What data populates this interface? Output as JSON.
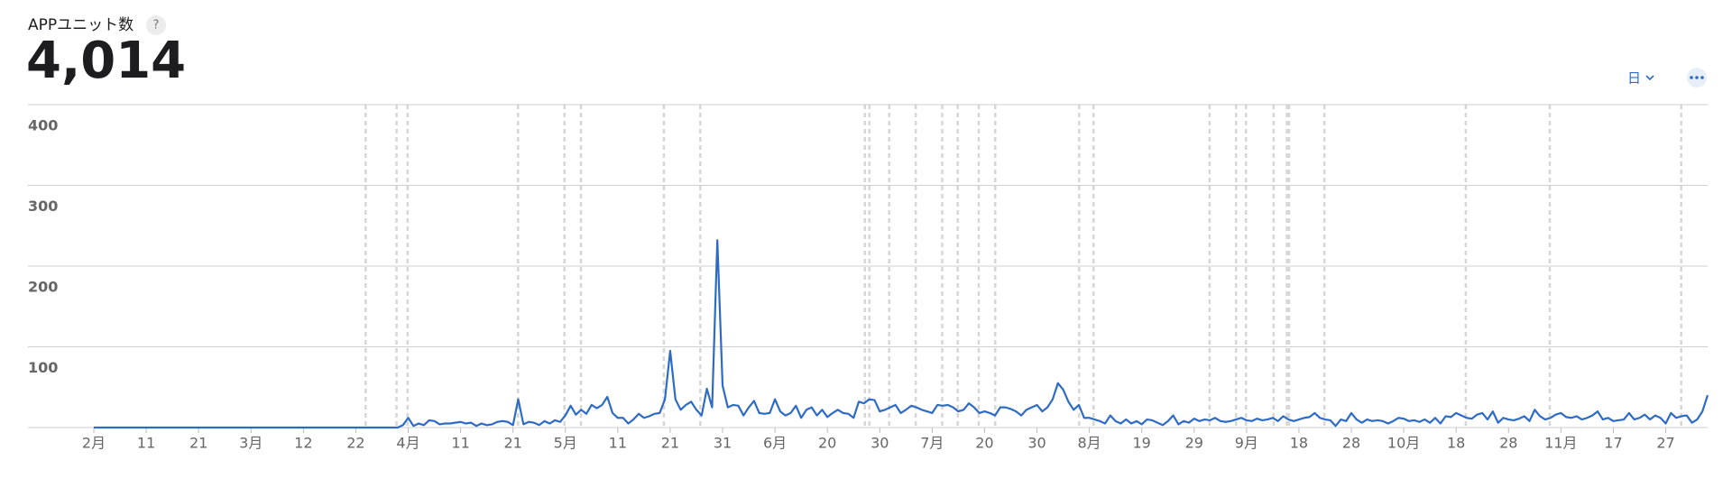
{
  "header": {
    "title": "APPユニット数",
    "help": "?",
    "total": "4,014",
    "period_menu": "日"
  },
  "chart_data": {
    "type": "line",
    "color": "#2e6bc6",
    "grid": true,
    "ylim": [
      0,
      400
    ],
    "yticks": [
      100,
      200,
      300,
      400
    ],
    "categories": [
      "2月",
      null,
      null,
      null,
      null,
      null,
      null,
      null,
      null,
      null,
      "11",
      null,
      null,
      null,
      null,
      null,
      null,
      null,
      null,
      null,
      "21",
      null,
      null,
      null,
      null,
      null,
      null,
      null,
      null,
      null,
      "3月",
      null,
      null,
      null,
      null,
      null,
      null,
      null,
      null,
      null,
      "12",
      null,
      null,
      null,
      null,
      null,
      null,
      null,
      null,
      null,
      "22",
      null,
      null,
      null,
      null,
      null,
      null,
      null,
      null,
      null,
      "4月",
      null,
      null,
      null,
      null,
      null,
      null,
      null,
      null,
      null,
      "11",
      null,
      null,
      null,
      null,
      null,
      null,
      null,
      null,
      null,
      "21",
      null,
      null,
      null,
      null,
      null,
      null,
      null,
      null,
      null,
      "5月",
      null,
      null,
      null,
      null,
      null,
      null,
      null,
      null,
      null,
      "11",
      null,
      null,
      null,
      null,
      null,
      null,
      null,
      null,
      null,
      "21",
      null,
      null,
      null,
      null,
      null,
      null,
      null,
      null,
      null,
      "31",
      null,
      null,
      null,
      null,
      null,
      null,
      null,
      null,
      null,
      "6月",
      null,
      null,
      null,
      null,
      null,
      null,
      null,
      null,
      null,
      "20",
      null,
      null,
      null,
      null,
      null,
      null,
      null,
      null,
      null,
      "30",
      null,
      null,
      null,
      null,
      null,
      null,
      null,
      null,
      null,
      "7月",
      null,
      null,
      null,
      null,
      null,
      null,
      null,
      null,
      null,
      "20",
      null,
      null,
      null,
      null,
      null,
      null,
      null,
      null,
      null,
      "30",
      null,
      null,
      null,
      null,
      null,
      null,
      null,
      null,
      null,
      "8月",
      null,
      null,
      null,
      null,
      null,
      null,
      null,
      null,
      null,
      "19",
      null,
      null,
      null,
      null,
      null,
      null,
      null,
      null,
      null,
      "29",
      null,
      null,
      null,
      null,
      null,
      null,
      null,
      null,
      null,
      "9月",
      null,
      null,
      null,
      null,
      null,
      null,
      null,
      null,
      null,
      "18",
      null,
      null,
      null,
      null,
      null,
      null,
      null,
      null,
      null,
      "28",
      null,
      null,
      null,
      null,
      null,
      null,
      null,
      null,
      null,
      "10月",
      null,
      null,
      null,
      null,
      null,
      null,
      null,
      null,
      null,
      "18",
      null,
      null,
      null,
      null,
      null,
      null,
      null,
      null,
      null,
      "28",
      null,
      null,
      null,
      null,
      null,
      null,
      null,
      null,
      null,
      "11月",
      null,
      null,
      null,
      null,
      null,
      null,
      null,
      null,
      null,
      "17",
      null,
      null,
      null,
      null,
      null,
      null,
      null,
      null,
      null,
      "27",
      null,
      null,
      null,
      null,
      null,
      null,
      null,
      null
    ],
    "values": [
      0,
      0,
      0,
      0,
      0,
      0,
      0,
      0,
      0,
      0,
      0,
      0,
      0,
      0,
      0,
      0,
      0,
      0,
      0,
      0,
      0,
      0,
      0,
      0,
      0,
      0,
      0,
      0,
      0,
      0,
      0,
      0,
      0,
      0,
      0,
      0,
      0,
      0,
      0,
      0,
      0,
      0,
      0,
      0,
      0,
      0,
      0,
      0,
      0,
      0,
      0,
      0,
      0,
      0,
      0,
      0,
      0,
      0,
      0,
      3,
      12,
      2,
      5,
      3,
      9,
      8,
      4,
      5,
      5,
      6,
      7,
      5,
      6,
      2,
      5,
      3,
      4,
      7,
      8,
      7,
      3,
      35,
      4,
      7,
      6,
      3,
      8,
      5,
      9,
      7,
      15,
      27,
      16,
      22,
      17,
      28,
      24,
      28,
      38,
      18,
      12,
      12,
      5,
      10,
      17,
      12,
      14,
      17,
      18,
      35,
      95,
      35,
      22,
      28,
      32,
      22,
      15,
      48,
      25,
      232,
      52,
      25,
      28,
      27,
      15,
      25,
      33,
      18,
      17,
      18,
      35,
      20,
      15,
      18,
      27,
      12,
      22,
      25,
      15,
      22,
      13,
      18,
      22,
      18,
      17,
      12,
      32,
      30,
      35,
      34,
      20,
      22,
      25,
      28,
      18,
      22,
      27,
      25,
      22,
      20,
      18,
      28,
      27,
      28,
      25,
      20,
      22,
      30,
      25,
      18,
      20,
      18,
      15,
      25,
      25,
      23,
      20,
      15,
      22,
      25,
      28,
      20,
      25,
      35,
      55,
      47,
      32,
      22,
      28,
      12,
      12,
      10,
      8,
      5,
      15,
      8,
      5,
      10,
      5,
      8,
      4,
      10,
      9,
      6,
      3,
      8,
      15,
      4,
      8,
      6,
      11,
      8,
      10,
      9,
      12,
      8,
      7,
      8,
      10,
      12,
      9,
      8,
      11,
      9,
      10,
      12,
      8,
      14,
      10,
      8,
      10,
      12,
      13,
      18,
      12,
      10,
      9,
      2,
      10,
      8,
      18,
      10,
      6,
      10,
      8,
      9,
      8,
      5,
      8,
      12,
      11,
      8,
      9,
      7,
      10,
      6,
      12,
      5,
      14,
      13,
      18,
      15,
      12,
      11,
      16,
      18,
      10,
      20,
      6,
      12,
      10,
      9,
      11,
      14,
      8,
      22,
      14,
      10,
      12,
      16,
      18,
      13,
      12,
      14,
      10,
      12,
      15,
      20,
      10,
      12,
      8,
      9,
      10,
      18,
      10,
      12,
      16,
      10,
      15,
      12,
      5,
      18,
      12,
      14,
      15,
      6,
      10,
      20,
      40
    ]
  }
}
